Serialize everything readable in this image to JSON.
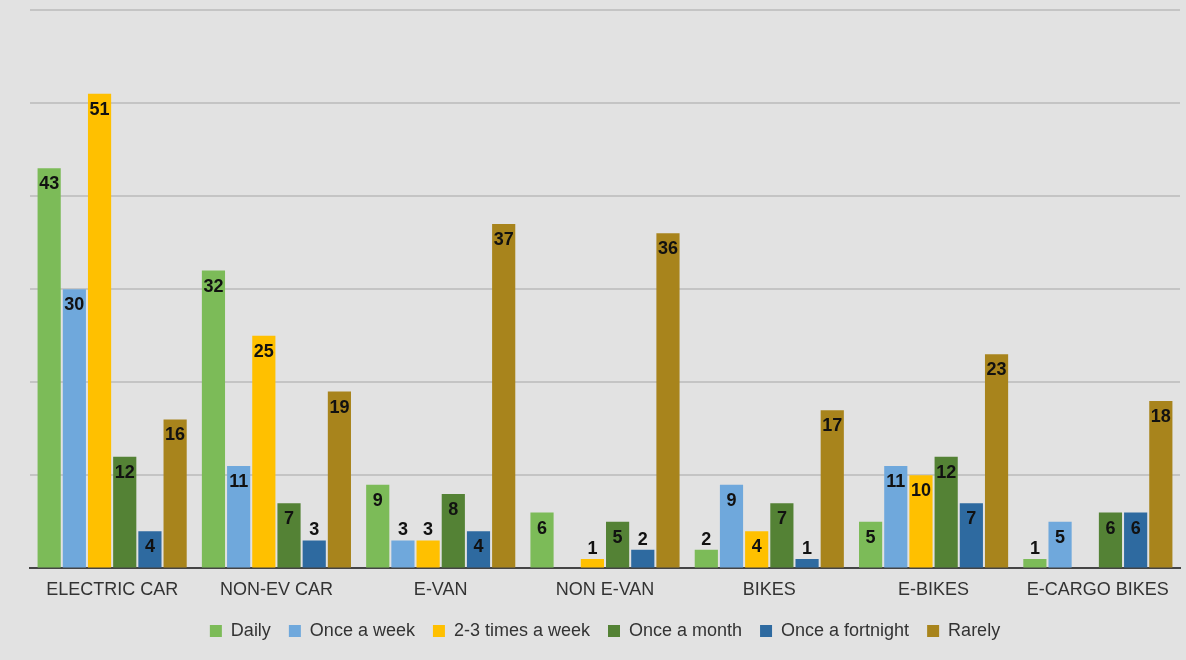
{
  "chart_data": {
    "type": "bar",
    "categories": [
      "ELECTRIC CAR",
      "NON-EV CAR",
      "E-VAN",
      "NON E-VAN",
      "BIKES",
      "E-BIKES",
      "E-CARGO BIKES"
    ],
    "series": [
      {
        "name": "Daily",
        "color": "#7cbb58",
        "values": [
          43,
          32,
          9,
          6,
          2,
          5,
          1
        ]
      },
      {
        "name": "Once a week",
        "color": "#6fa8dc",
        "values": [
          30,
          11,
          3,
          null,
          9,
          11,
          5
        ]
      },
      {
        "name": "2-3 times a week",
        "color": "#ffc000",
        "values": [
          51,
          25,
          3,
          1,
          4,
          10,
          null
        ]
      },
      {
        "name": "Once a month",
        "color": "#548235",
        "values": [
          12,
          7,
          8,
          5,
          7,
          12,
          6
        ]
      },
      {
        "name": "Once a fortnight",
        "color": "#2e6aa0",
        "values": [
          4,
          3,
          4,
          2,
          1,
          7,
          6
        ]
      },
      {
        "name": "Rarely",
        "color": "#a8841c",
        "values": [
          16,
          19,
          37,
          36,
          17,
          23,
          18
        ]
      }
    ],
    "tick_labels": "x",
    "grid": "y",
    "legend": "bottom",
    "data_labels": true
  }
}
